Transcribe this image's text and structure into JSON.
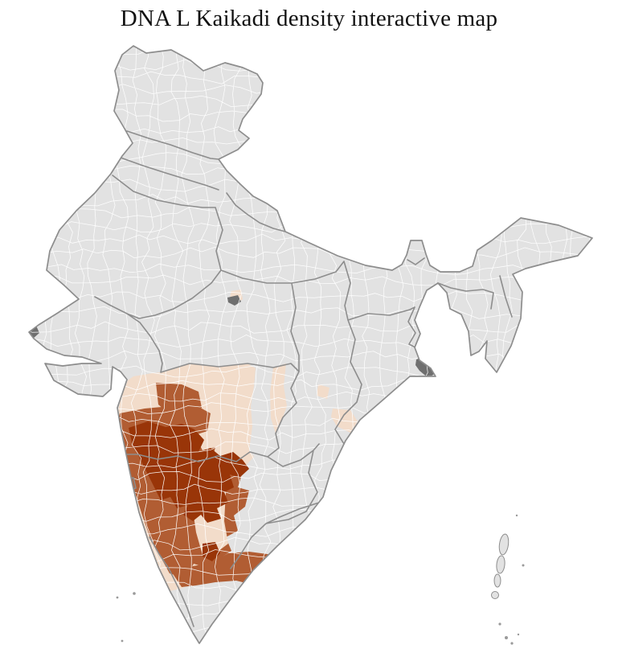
{
  "title": "DNA L Kaikadi density interactive map",
  "map": {
    "description": "India district-level choropleth of DNA L Kaikadi density",
    "color_scale": {
      "no_data": "#e2e2e2",
      "density_low": "#f2dcca",
      "density_medium": "#b15d33",
      "density_high": "#993508"
    },
    "colors": {
      "background": "#ffffff",
      "district_border": "#ffffff",
      "state_border": "#8d8d8d",
      "special_region": "#6f6f6f"
    }
  }
}
